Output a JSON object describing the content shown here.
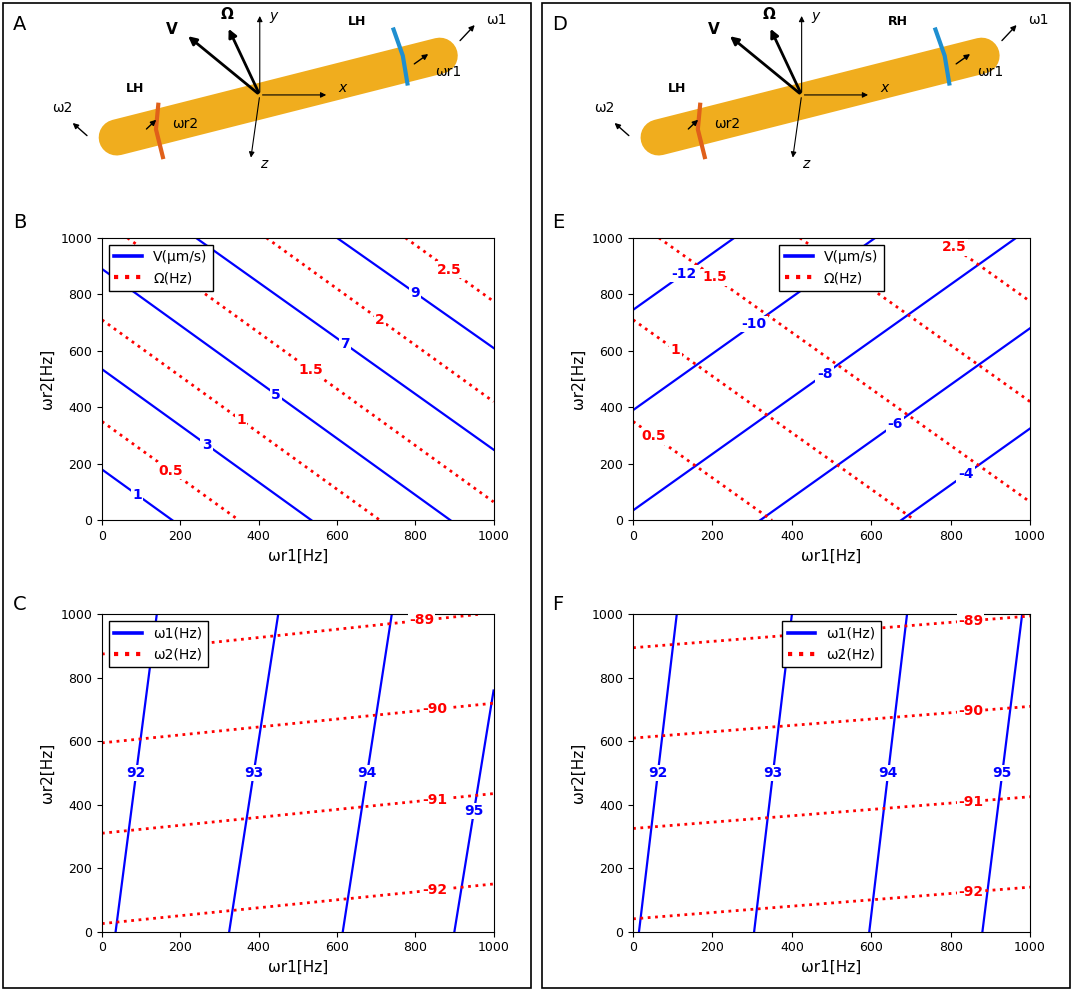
{
  "chart_data": [
    {
      "type": "contour",
      "panel": "B",
      "xlabel": "ωr1[Hz]",
      "ylabel": "ωr2[Hz]",
      "xlim": [
        0,
        1000
      ],
      "ylim": [
        0,
        1000
      ],
      "xticks": [
        0,
        200,
        400,
        600,
        800,
        1000
      ],
      "yticks": [
        0,
        200,
        400,
        600,
        800,
        1000
      ],
      "legend": "upper left",
      "series": [
        {
          "name": "V(μm/s)",
          "color": "#0000ff",
          "line_style": "solid",
          "contours": [
            {
              "level": 1,
              "x": [
                0,
                180
              ],
              "y": [
                180,
                0
              ]
            },
            {
              "level": 3,
              "x": [
                0,
                535
              ],
              "y": [
                535,
                0
              ]
            },
            {
              "level": 5,
              "x": [
                0,
                890
              ],
              "y": [
                890,
                0
              ]
            },
            {
              "level": 7,
              "x": [
                240,
                1000
              ],
              "y": [
                1000,
                250
              ]
            },
            {
              "level": 9,
              "x": [
                600,
                1000
              ],
              "y": [
                1000,
                610
              ]
            }
          ]
        },
        {
          "name": "Ω(Hz)",
          "color": "#ff0000",
          "line_style": "dotted",
          "contours": [
            {
              "level": 0.5,
              "x": [
                0,
                350
              ],
              "y": [
                350,
                0
              ]
            },
            {
              "level": 1,
              "x": [
                0,
                710
              ],
              "y": [
                710,
                0
              ]
            },
            {
              "level": 1.5,
              "x": [
                65,
                1000
              ],
              "y": [
                1000,
                65
              ]
            },
            {
              "level": 2,
              "x": [
                420,
                1000
              ],
              "y": [
                1000,
                420
              ]
            },
            {
              "level": 2.5,
              "x": [
                775,
                1000
              ],
              "y": [
                1000,
                775
              ]
            }
          ]
        }
      ]
    },
    {
      "type": "contour",
      "panel": "C",
      "xlabel": "ωr1[Hz]",
      "ylabel": "ωr2[Hz]",
      "xlim": [
        0,
        1000
      ],
      "ylim": [
        0,
        1000
      ],
      "xticks": [
        0,
        200,
        400,
        600,
        800,
        1000
      ],
      "yticks": [
        0,
        200,
        400,
        600,
        800,
        1000
      ],
      "legend": "upper left",
      "series": [
        {
          "name": "ω1(Hz)",
          "color": "#0000ff",
          "line_style": "solid",
          "contours": [
            {
              "level": 92,
              "x": [
                35,
                140
              ],
              "y": [
                0,
                1000
              ]
            },
            {
              "level": 93,
              "x": [
                325,
                450
              ],
              "y": [
                0,
                1000
              ]
            },
            {
              "level": 94,
              "x": [
                615,
                740
              ],
              "y": [
                0,
                1000
              ]
            },
            {
              "level": 95,
              "x": [
                900,
                1000
              ],
              "y": [
                0,
                760
              ]
            }
          ]
        },
        {
          "name": "ω2(Hz)",
          "color": "#ff0000",
          "line_style": "dotted",
          "contours": [
            {
              "level": -92,
              "x": [
                0,
                1000
              ],
              "y": [
                25,
                150
              ]
            },
            {
              "level": -91,
              "x": [
                0,
                1000
              ],
              "y": [
                310,
                435
              ]
            },
            {
              "level": -90,
              "x": [
                0,
                1000
              ],
              "y": [
                595,
                720
              ]
            },
            {
              "level": -89,
              "x": [
                0,
                960
              ],
              "y": [
                875,
                1000
              ]
            }
          ]
        }
      ]
    },
    {
      "type": "contour",
      "panel": "E",
      "xlabel": "ωr1[Hz]",
      "ylabel": "ωr2[Hz]",
      "xlim": [
        0,
        1000
      ],
      "ylim": [
        0,
        1000
      ],
      "xticks": [
        0,
        200,
        400,
        600,
        800,
        1000
      ],
      "yticks": [
        0,
        200,
        400,
        600,
        800,
        1000
      ],
      "legend": "upper center",
      "series": [
        {
          "name": "V(μm/s)",
          "color": "#0000ff",
          "line_style": "solid",
          "contours": [
            {
              "level": -12,
              "x": [
                0,
                255
              ],
              "y": [
                745,
                1000
              ]
            },
            {
              "level": -10,
              "x": [
                0,
                610
              ],
              "y": [
                390,
                1000
              ]
            },
            {
              "level": -8,
              "x": [
                0,
                965
              ],
              "y": [
                35,
                1000
              ]
            },
            {
              "level": -6,
              "x": [
                320,
                1000
              ],
              "y": [
                0,
                680
              ]
            },
            {
              "level": -4,
              "x": [
                675,
                1000
              ],
              "y": [
                0,
                325
              ]
            }
          ]
        },
        {
          "name": "Ω(Hz)",
          "color": "#ff0000",
          "line_style": "dotted",
          "contours": [
            {
              "level": 0.5,
              "x": [
                0,
                350
              ],
              "y": [
                350,
                0
              ]
            },
            {
              "level": 1,
              "x": [
                0,
                710
              ],
              "y": [
                710,
                0
              ]
            },
            {
              "level": 1.5,
              "x": [
                65,
                1000
              ],
              "y": [
                1000,
                65
              ]
            },
            {
              "level": 2,
              "x": [
                420,
                1000
              ],
              "y": [
                1000,
                420
              ]
            },
            {
              "level": 2.5,
              "x": [
                775,
                1000
              ],
              "y": [
                1000,
                775
              ]
            }
          ]
        }
      ]
    },
    {
      "type": "contour",
      "panel": "F",
      "xlabel": "ωr1[Hz]",
      "ylabel": "ωr2[Hz]",
      "xlim": [
        0,
        1000
      ],
      "ylim": [
        0,
        1000
      ],
      "xticks": [
        0,
        200,
        400,
        600,
        800,
        1000
      ],
      "yticks": [
        0,
        200,
        400,
        600,
        800,
        1000
      ],
      "legend": "upper center",
      "series": [
        {
          "name": "ω1(Hz)",
          "color": "#0000ff",
          "line_style": "solid",
          "contours": [
            {
              "level": 92,
              "x": [
                15,
                110
              ],
              "y": [
                0,
                1000
              ]
            },
            {
              "level": 93,
              "x": [
                305,
                400
              ],
              "y": [
                0,
                1000
              ]
            },
            {
              "level": 94,
              "x": [
                595,
                690
              ],
              "y": [
                0,
                1000
              ]
            },
            {
              "level": 95,
              "x": [
                880,
                980
              ],
              "y": [
                0,
                1000
              ]
            }
          ]
        },
        {
          "name": "ω2(Hz)",
          "color": "#ff0000",
          "line_style": "dotted",
          "contours": [
            {
              "level": -92,
              "x": [
                0,
                1000
              ],
              "y": [
                40,
                140
              ]
            },
            {
              "level": -91,
              "x": [
                0,
                1000
              ],
              "y": [
                325,
                425
              ]
            },
            {
              "level": -90,
              "x": [
                0,
                1000
              ],
              "y": [
                610,
                710
              ]
            },
            {
              "level": -89,
              "x": [
                0,
                1000
              ],
              "y": [
                895,
                995
              ]
            }
          ]
        }
      ]
    }
  ],
  "schematics": [
    {
      "panel": "A",
      "helix_1": "LH",
      "helix_2": "LH",
      "labels": {
        "V": "V",
        "Omega": "Ω",
        "x": "x",
        "y": "y",
        "z": "z",
        "w1": "ω1",
        "wr1": "ωr1",
        "w2": "ω2",
        "wr2": "ωr2"
      }
    },
    {
      "panel": "D",
      "helix_1": "RH",
      "helix_2": "LH",
      "labels": {
        "V": "V",
        "Omega": "Ω",
        "x": "x",
        "y": "y",
        "z": "z",
        "w1": "ω1",
        "wr1": "ωr1",
        "w2": "ω2",
        "wr2": "ωr2"
      }
    }
  ]
}
